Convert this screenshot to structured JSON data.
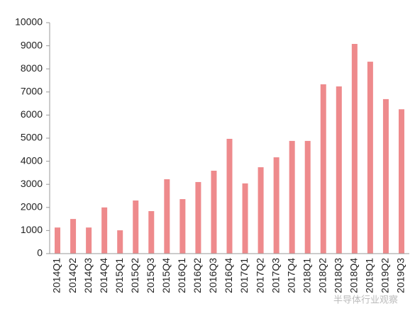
{
  "chart_data": {
    "type": "bar",
    "categories": [
      "2014Q1",
      "2014Q2",
      "2014Q3",
      "2014Q4",
      "2015Q1",
      "2015Q2",
      "2015Q3",
      "2015Q4",
      "2016Q1",
      "2016Q2",
      "2016Q3",
      "2016Q4",
      "2017Q1",
      "2017Q2",
      "2017Q3",
      "2017Q4",
      "2018Q1",
      "2018Q2",
      "2018Q3",
      "2018Q4",
      "2019Q1",
      "2019Q2",
      "2019Q3"
    ],
    "values": [
      1130,
      1500,
      1130,
      2000,
      1010,
      2300,
      1840,
      3220,
      2360,
      3100,
      3590,
      4970,
      3040,
      3740,
      4170,
      4880,
      4880,
      7330,
      7240,
      9080,
      8310,
      6690,
      6250
    ],
    "color": "#ee8a8c",
    "ylim": [
      0,
      10000
    ],
    "yticks": [
      0,
      1000,
      2000,
      3000,
      4000,
      5000,
      6000,
      7000,
      8000,
      9000,
      10000
    ],
    "watermark": "半导体行业观察"
  }
}
